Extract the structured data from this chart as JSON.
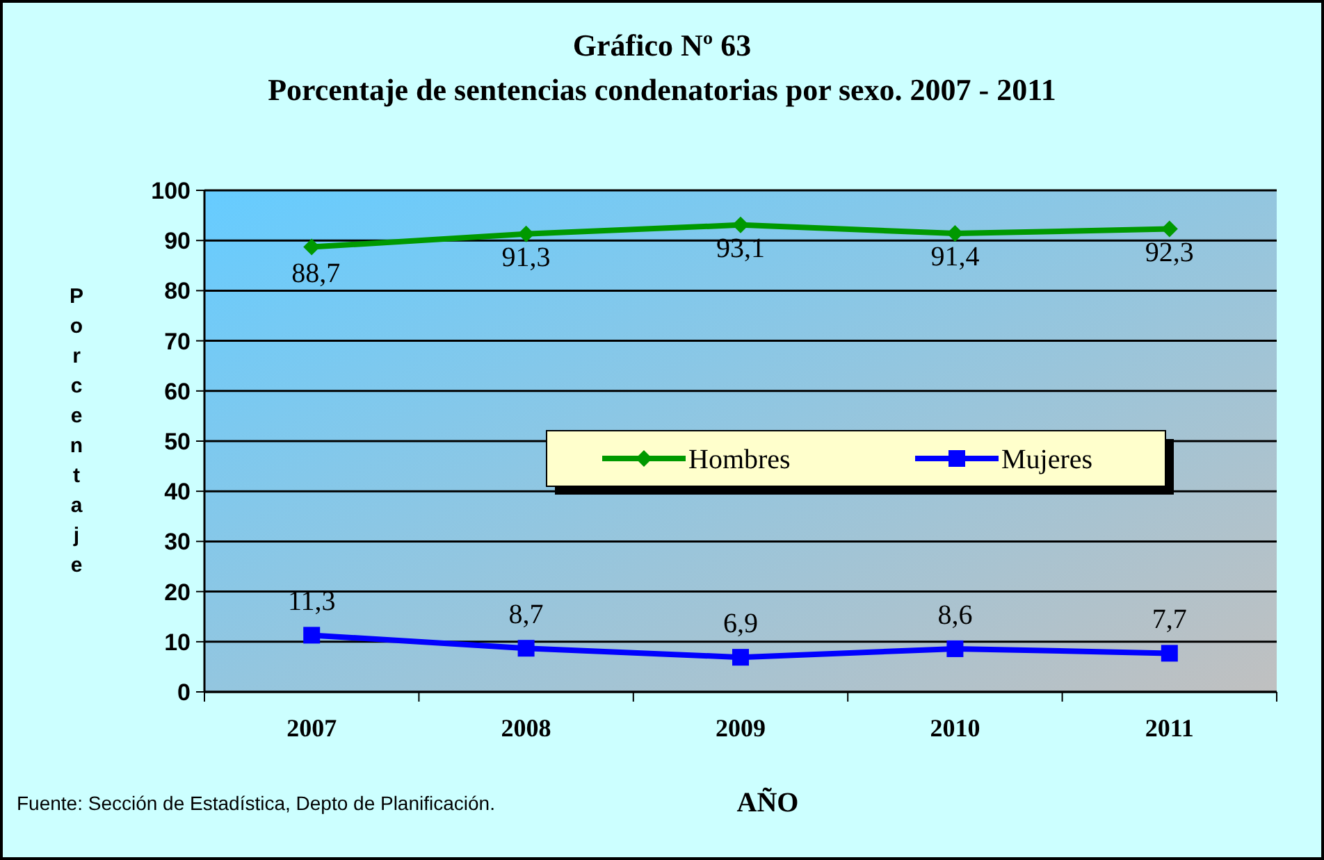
{
  "chart_data": {
    "type": "line",
    "title": "Gráfico Nº 63",
    "subtitle": "Porcentaje de sentencias condenatorias por sexo. 2007 - 2011",
    "xlabel": "AÑO",
    "ylabel": "Porcentaje",
    "annotations": [
      "Fuente: Sección de Estadística, Depto de Planificación."
    ],
    "categories": [
      "2007",
      "2008",
      "2009",
      "2010",
      "2011"
    ],
    "series": [
      {
        "name": "Hombres",
        "color": "#009900",
        "marker": "diamond",
        "values": [
          88.7,
          91.3,
          93.1,
          91.4,
          92.3
        ],
        "value_labels": [
          "88,7",
          "91,3",
          "93,1",
          "91,4",
          "92,3"
        ]
      },
      {
        "name": "Mujeres",
        "color": "#0000ff",
        "marker": "square",
        "values": [
          11.3,
          8.7,
          6.9,
          8.6,
          7.7
        ],
        "value_labels": [
          "11,3",
          "8,7",
          "6,9",
          "8,6",
          "7,7"
        ]
      }
    ],
    "ylim": [
      0,
      100
    ],
    "yticks": [
      0,
      10,
      20,
      30,
      40,
      50,
      60,
      70,
      80,
      90,
      100
    ],
    "grid": "y",
    "legend": "center",
    "line_style": "solid"
  }
}
